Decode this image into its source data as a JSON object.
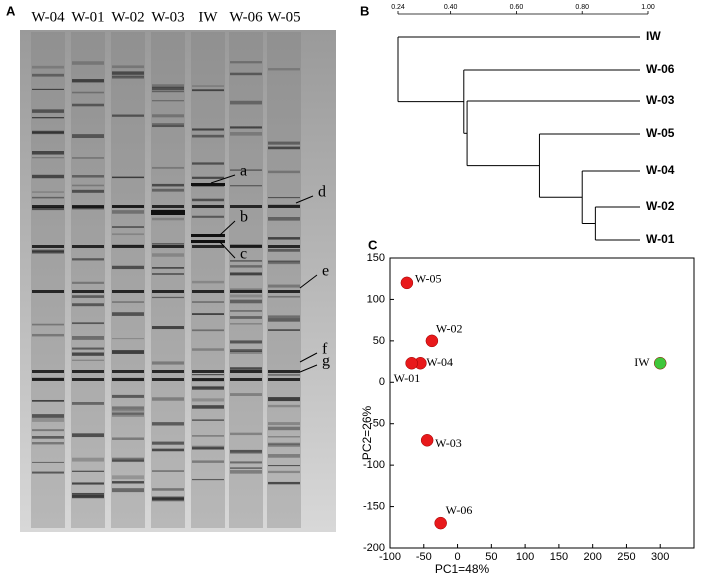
{
  "gel": {
    "panel_label": "A",
    "lanes": [
      "W-04",
      "W-01",
      "W-02",
      "W-03",
      "IW",
      "W-06",
      "W-05"
    ],
    "band_labels": [
      "a",
      "b",
      "c",
      "d",
      "e",
      "f",
      "g"
    ]
  },
  "chart_data": [
    {
      "type": "dendrogram",
      "panel_label": "B",
      "leaves": [
        "IW",
        "W-06",
        "W-03",
        "W-05",
        "W-04",
        "W-02",
        "W-01"
      ],
      "merges": [
        [
          5,
          6,
          0.84
        ],
        [
          4,
          7,
          0.8
        ],
        [
          3,
          8,
          0.67
        ],
        [
          2,
          9,
          0.45
        ],
        [
          1,
          10,
          0.44
        ],
        [
          0,
          11,
          0.24
        ]
      ],
      "xlim": [
        0.24,
        1.0
      ],
      "xticks": [
        {
          "value": 0.24,
          "label": "0.24"
        },
        {
          "value": 0.4,
          "label": "0.40"
        },
        {
          "value": 0.6,
          "label": "0.60"
        },
        {
          "value": 0.8,
          "label": "0.80"
        },
        {
          "value": 1.0,
          "label": "1.00"
        }
      ]
    },
    {
      "type": "scatter",
      "panel_label": "C",
      "x_label": "PC1=48%",
      "y_label": "PC2=26%",
      "xlim": [
        -100,
        350
      ],
      "ylim": [
        -200,
        150
      ],
      "xticks": [
        -100,
        -50,
        0,
        50,
        100,
        150,
        200,
        250,
        300
      ],
      "yticks": [
        -200,
        -150,
        -100,
        -50,
        0,
        50,
        100,
        150
      ],
      "series": [
        {
          "color": "#e8191b",
          "labels": [
            "W-05",
            "W-02",
            "W-04",
            "W-01",
            "W-03",
            "W-06"
          ],
          "x": [
            -75,
            -38,
            -55,
            -68,
            -45,
            -25
          ],
          "values": [
            120,
            50,
            23,
            23,
            -70,
            -170
          ]
        },
        {
          "color": "#3fc73a",
          "labels": [
            "IW"
          ],
          "x": [
            300
          ],
          "values": [
            23
          ]
        }
      ]
    }
  ]
}
